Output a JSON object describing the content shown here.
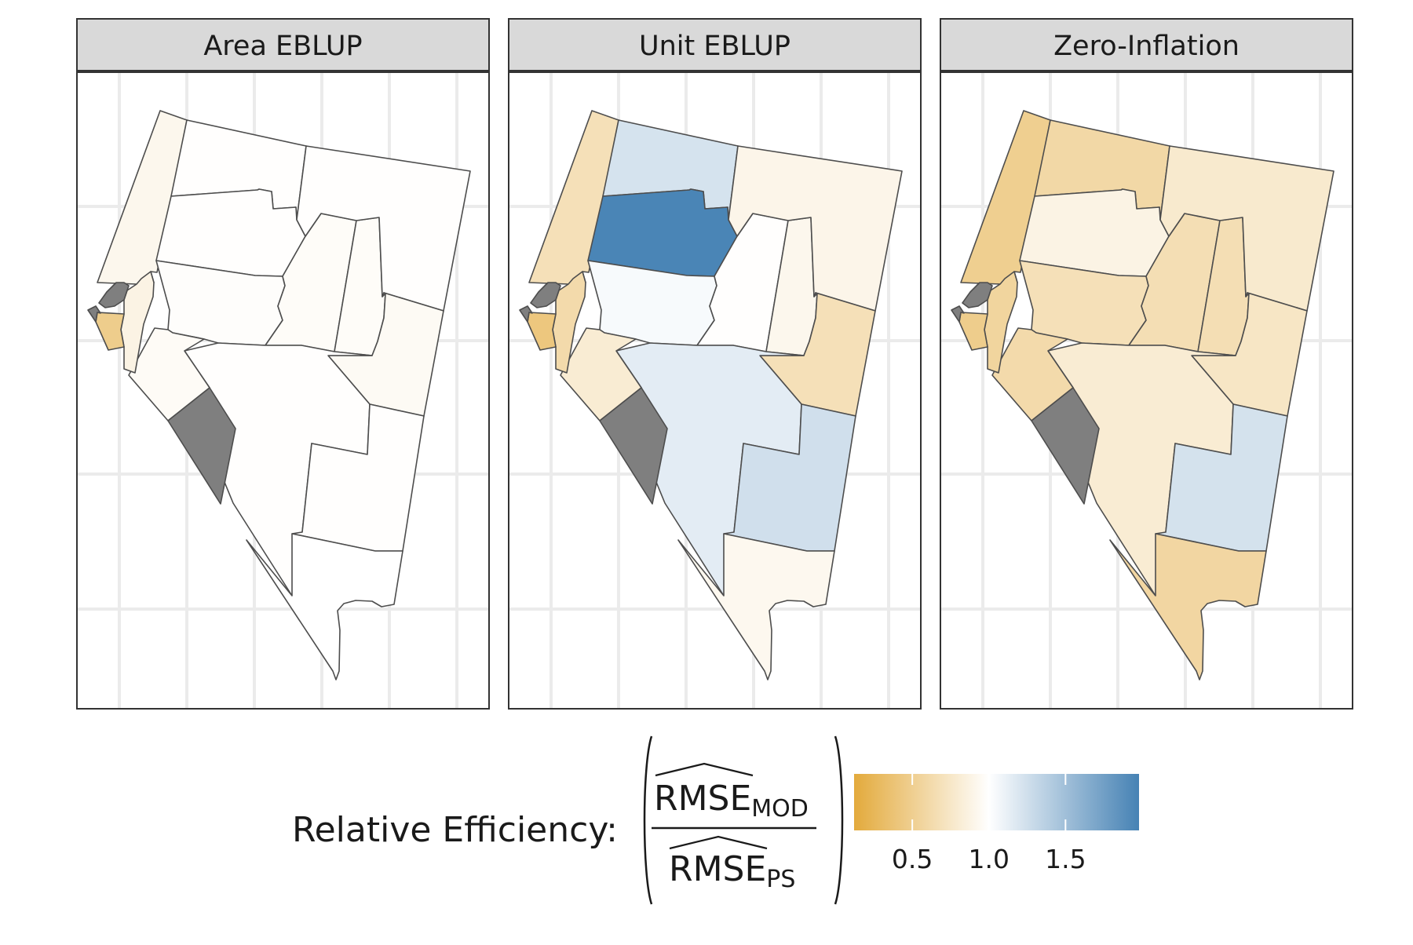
{
  "panels": [
    {
      "title": "Area EBLUP",
      "regions": [
        {
          "id": "washoe",
          "value": 0.92
        },
        {
          "id": "humboldt",
          "value": 0.99
        },
        {
          "id": "pershing",
          "value": 0.99
        },
        {
          "id": "churchill",
          "value": 0.98
        },
        {
          "id": "lander",
          "value": 0.97
        },
        {
          "id": "eureka",
          "value": 0.97
        },
        {
          "id": "elko",
          "value": 0.99
        },
        {
          "id": "white_pine",
          "value": 0.95
        },
        {
          "id": "nye",
          "value": 0.99
        },
        {
          "id": "lincoln",
          "value": 0.99
        },
        {
          "id": "clark",
          "value": 1.0
        },
        {
          "id": "mineral",
          "value": 0.96
        },
        {
          "id": "lyon",
          "value": 0.88
        },
        {
          "id": "douglas",
          "value": 0.48
        },
        {
          "id": "carson_city",
          "value": null
        },
        {
          "id": "storey",
          "value": null
        },
        {
          "id": "esmeralda",
          "value": null
        }
      ]
    },
    {
      "title": "Unit EBLUP",
      "regions": [
        {
          "id": "washoe",
          "value": 0.68
        },
        {
          "id": "humboldt",
          "value": 1.22
        },
        {
          "id": "pershing",
          "value": 1.96
        },
        {
          "id": "churchill",
          "value": 1.04
        },
        {
          "id": "lander",
          "value": 0.99
        },
        {
          "id": "eureka",
          "value": 0.92
        },
        {
          "id": "elko",
          "value": 0.9
        },
        {
          "id": "white_pine",
          "value": 0.68
        },
        {
          "id": "nye",
          "value": 1.15
        },
        {
          "id": "lincoln",
          "value": 1.25
        },
        {
          "id": "clark",
          "value": 0.93
        },
        {
          "id": "mineral",
          "value": 0.8
        },
        {
          "id": "lyon",
          "value": 0.62
        },
        {
          "id": "douglas",
          "value": 0.42
        },
        {
          "id": "carson_city",
          "value": null
        },
        {
          "id": "storey",
          "value": null
        },
        {
          "id": "esmeralda",
          "value": null
        }
      ]
    },
    {
      "title": "Zero-Inflation",
      "regions": [
        {
          "id": "washoe",
          "value": 0.5
        },
        {
          "id": "humboldt",
          "value": 0.6
        },
        {
          "id": "pershing",
          "value": 0.88
        },
        {
          "id": "churchill",
          "value": 0.68
        },
        {
          "id": "lander",
          "value": 0.66
        },
        {
          "id": "eureka",
          "value": 0.66
        },
        {
          "id": "elko",
          "value": 0.78
        },
        {
          "id": "white_pine",
          "value": 0.74
        },
        {
          "id": "nye",
          "value": 0.8
        },
        {
          "id": "lincoln",
          "value": 1.23
        },
        {
          "id": "clark",
          "value": 0.58
        },
        {
          "id": "mineral",
          "value": 0.62
        },
        {
          "id": "lyon",
          "value": 0.56
        },
        {
          "id": "douglas",
          "value": 0.48
        },
        {
          "id": "carson_city",
          "value": null
        },
        {
          "id": "storey",
          "value": null
        },
        {
          "id": "esmeralda",
          "value": null
        }
      ]
    }
  ],
  "legend": {
    "label": "Relative Efficiency:",
    "numerator": "RMSE",
    "numerator_sub": "MOD",
    "denominator": "RMSE",
    "denominator_sub": "PS",
    "breaks": [
      "0.5",
      "1.0",
      "1.5"
    ],
    "break_values": [
      0.5,
      1.0,
      1.5
    ],
    "limits": [
      0.12,
      1.98
    ],
    "colors": {
      "low": "#e3aa3c",
      "mid": "#ffffff",
      "high": "#4682b4",
      "na": "#7f7f7f"
    }
  }
}
